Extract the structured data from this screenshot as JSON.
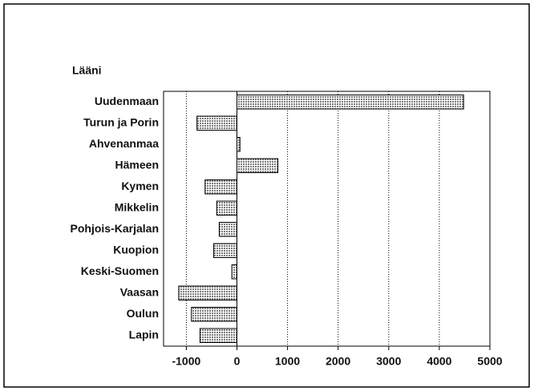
{
  "chart_data": {
    "type": "hbar",
    "ylabel": "Lääni",
    "categories": [
      "Uudenmaan",
      "Turun ja Porin",
      "Ahvenanmaa",
      "Hämeen",
      "Kymen",
      "Mikkelin",
      "Pohjois-Karjalan",
      "Kuopion",
      "Keski-Suomen",
      "Vaasan",
      "Oulun",
      "Lapin"
    ],
    "values": [
      4480,
      -790,
      60,
      810,
      -630,
      -400,
      -350,
      -460,
      -100,
      -1150,
      -900,
      -730
    ],
    "color": "#7a7a7a",
    "xlim": [
      -1450,
      5000
    ],
    "xticks": [
      -1000,
      0,
      1000,
      2000,
      3000,
      4000,
      5000
    ],
    "grid": true
  }
}
